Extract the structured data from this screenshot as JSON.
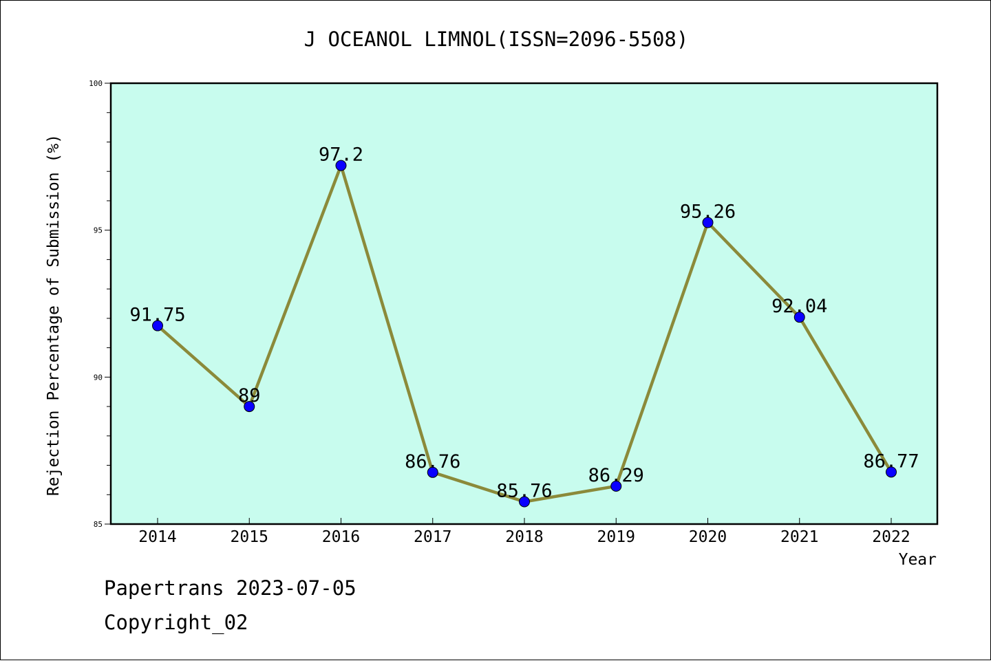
{
  "chart_data": {
    "type": "line",
    "title": "J OCEANOL LIMNOL(ISSN=2096-5508)",
    "xlabel": "Year",
    "ylabel": "Rejection Percentage of Submission (%)",
    "categories": [
      "2014",
      "2015",
      "2016",
      "2017",
      "2018",
      "2019",
      "2020",
      "2021",
      "2022"
    ],
    "values": [
      91.75,
      89,
      97.2,
      86.76,
      85.76,
      86.29,
      95.26,
      92.04,
      86.77
    ],
    "value_labels": [
      "91.75",
      "89",
      "97.2",
      "86.76",
      "85.76",
      "86.29",
      "95.26",
      "92.04",
      "86.77"
    ],
    "ylim": [
      85,
      100
    ],
    "yticks": [
      85,
      90,
      95,
      100
    ],
    "ytick_labels": [
      "85",
      "90",
      "95",
      "100"
    ],
    "grid": false,
    "legend": "none",
    "colors": {
      "plot_background": "#c8fcee",
      "line": "#8b8a3a",
      "marker": "#0a00ff"
    }
  },
  "footer": {
    "line1": "Papertrans 2023-07-05",
    "line2": "Copyright_02"
  }
}
